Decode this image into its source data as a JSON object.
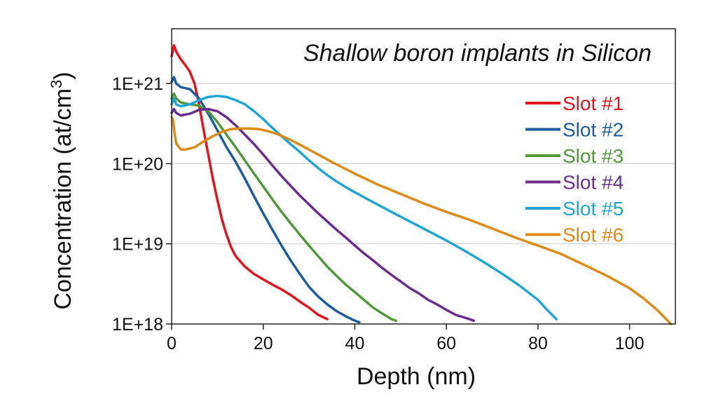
{
  "chart_data": {
    "type": "line",
    "title": "Shallow boron implants in Silicon",
    "xlabel": "Depth (nm)",
    "ylabel": "Concentration (at/cm",
    "ylabel_sup": "3",
    "ylabel_end": ")",
    "xlim": [
      0,
      110
    ],
    "ylim": [
      1e+18,
      4e+21
    ],
    "yscale": "log",
    "xticks": [
      0,
      20,
      40,
      60,
      80,
      100
    ],
    "xtick_labels": [
      "0",
      "20",
      "40",
      "60",
      "80",
      "100"
    ],
    "yticks": [
      1e+18,
      1e+19,
      1e+20,
      1e+21
    ],
    "ytick_labels": [
      "1E+18",
      "1E+19",
      "1E+20",
      "1E+21"
    ],
    "grid": "horizontal",
    "legend": "right",
    "series": [
      {
        "name": "Slot #1",
        "color": "#e3141b",
        "x": [
          0,
          0.5,
          1,
          2,
          3,
          4,
          5,
          6,
          7,
          8,
          9,
          10,
          11,
          12,
          13,
          14,
          16,
          18,
          20,
          22,
          24,
          26,
          28,
          30,
          32,
          34
        ],
        "y": [
          2.2e+21,
          3e+21,
          2.5e+21,
          2e+21,
          1.7e+21,
          1.4e+21,
          1e+21,
          5.5e+20,
          2.6e+20,
          1.3e+20,
          6.5e+19,
          3.5e+19,
          2e+19,
          1.3e+19,
          9e+18,
          7e+18,
          5.2e+18,
          4.2e+18,
          3.6e+18,
          3.1e+18,
          2.7e+18,
          2.3e+18,
          1.9e+18,
          1.6e+18,
          1.3e+18,
          1.15e+18
        ]
      },
      {
        "name": "Slot #2",
        "color": "#1a5c9e",
        "x": [
          0,
          0.5,
          1,
          2,
          4,
          6,
          8,
          10,
          12,
          14,
          16,
          18,
          20,
          22,
          24,
          26,
          28,
          30,
          32,
          34,
          36,
          38,
          40,
          41
        ],
        "y": [
          1.05e+21,
          1.2e+21,
          1e+21,
          9e+20,
          8.5e+20,
          6.5e+20,
          4.2e+20,
          2.6e+20,
          1.6e+20,
          1.05e+20,
          6.5e+19,
          3.9e+19,
          2.4e+19,
          1.5e+19,
          9.5e+18,
          6.2e+18,
          4.2e+18,
          2.9e+18,
          2.2e+18,
          1.75e+18,
          1.45e+18,
          1.25e+18,
          1.1e+18,
          1.05e+18
        ]
      },
      {
        "name": "Slot #3",
        "color": "#4e9a3a",
        "x": [
          0,
          0.5,
          1,
          2,
          4,
          6,
          8,
          10,
          12,
          14,
          16,
          18,
          20,
          22,
          24,
          26,
          28,
          30,
          32,
          34,
          36,
          38,
          40,
          42,
          44,
          46,
          48,
          49
        ],
        "y": [
          6.5e+20,
          7.5e+20,
          6.5e+20,
          5.8e+20,
          5.5e+20,
          5.3e+20,
          4.5e+20,
          3.3e+20,
          2.3e+20,
          1.6e+20,
          1.1e+20,
          7.5e+19,
          5.2e+19,
          3.6e+19,
          2.5e+19,
          1.8e+19,
          1.3e+19,
          9.5e+18,
          7e+18,
          5.2e+18,
          4e+18,
          3.1e+18,
          2.5e+18,
          2e+18,
          1.6e+18,
          1.35e+18,
          1.15e+18,
          1.1e+18
        ]
      },
      {
        "name": "Slot #4",
        "color": "#6a2d8f",
        "x": [
          0,
          0.5,
          1,
          2,
          4,
          6,
          8,
          10,
          12,
          14,
          16,
          18,
          20,
          22,
          24,
          26,
          28,
          30,
          32,
          34,
          36,
          38,
          40,
          42,
          44,
          46,
          48,
          50,
          52,
          54,
          56,
          58,
          60,
          62,
          64,
          66
        ],
        "y": [
          4.3e+20,
          4.8e+20,
          4.3e+20,
          4e+20,
          4.2e+20,
          4.7e+20,
          4.8e+20,
          4.5e+20,
          3.8e+20,
          3e+20,
          2.3e+20,
          1.75e+20,
          1.3e+20,
          9.5e+19,
          7e+19,
          5.3e+19,
          4e+19,
          3.1e+19,
          2.4e+19,
          1.9e+19,
          1.5e+19,
          1.2e+19,
          9.5e+18,
          7.6e+18,
          6.2e+18,
          5e+18,
          4.1e+18,
          3.4e+18,
          2.8e+18,
          2.4e+18,
          2e+18,
          1.75e+18,
          1.5e+18,
          1.3e+18,
          1.2e+18,
          1.1e+18
        ]
      },
      {
        "name": "Slot #5",
        "color": "#1fa6d6",
        "x": [
          0,
          0.5,
          1,
          2,
          4,
          6,
          8,
          10,
          12,
          14,
          16,
          18,
          20,
          22,
          24,
          26,
          28,
          30,
          32,
          34,
          36,
          38,
          40,
          44,
          48,
          52,
          56,
          60,
          64,
          68,
          72,
          76,
          80,
          82,
          84
        ],
        "y": [
          5.5e+20,
          6.5e+20,
          5.5e+20,
          5.2e+20,
          5.5e+20,
          6.2e+20,
          6.8e+20,
          7e+20,
          6.8e+20,
          6.2e+20,
          5.5e+20,
          4.5e+20,
          3.6e+20,
          2.8e+20,
          2.2e+20,
          1.75e+20,
          1.4e+20,
          1.1e+20,
          8.8e+19,
          7.2e+19,
          6e+19,
          5.1e+19,
          4.4e+19,
          3.3e+19,
          2.5e+19,
          1.9e+19,
          1.45e+19,
          1.1e+19,
          8.2e+18,
          6e+18,
          4.3e+18,
          3e+18,
          2e+18,
          1.5e+18,
          1.15e+18
        ]
      },
      {
        "name": "Slot #6",
        "color": "#e08a16",
        "x": [
          0,
          0.3,
          0.6,
          1,
          2,
          3,
          5,
          7,
          9,
          11,
          13,
          15,
          17,
          19,
          21,
          23,
          25,
          27,
          30,
          35,
          40,
          45,
          50,
          55,
          60,
          65,
          70,
          75,
          80,
          85,
          90,
          95,
          100,
          103,
          106,
          108,
          109
        ],
        "y": [
          3.8e+20,
          3.5e+20,
          2.5e+20,
          1.8e+20,
          1.5e+20,
          1.5e+20,
          1.6e+20,
          1.9e+20,
          2.2e+20,
          2.5e+20,
          2.7e+20,
          2.75e+20,
          2.75e+20,
          2.7e+20,
          2.55e+20,
          2.35e+20,
          2.1e+20,
          1.85e+20,
          1.5e+20,
          1.05e+20,
          7.5e+19,
          5.5e+19,
          4.2e+19,
          3.2e+19,
          2.5e+19,
          2e+19,
          1.55e+19,
          1.2e+19,
          9.5e+18,
          7.5e+18,
          5.5e+18,
          4e+18,
          2.8e+18,
          2.1e+18,
          1.5e+18,
          1.15e+18,
          1e+18
        ]
      }
    ]
  }
}
